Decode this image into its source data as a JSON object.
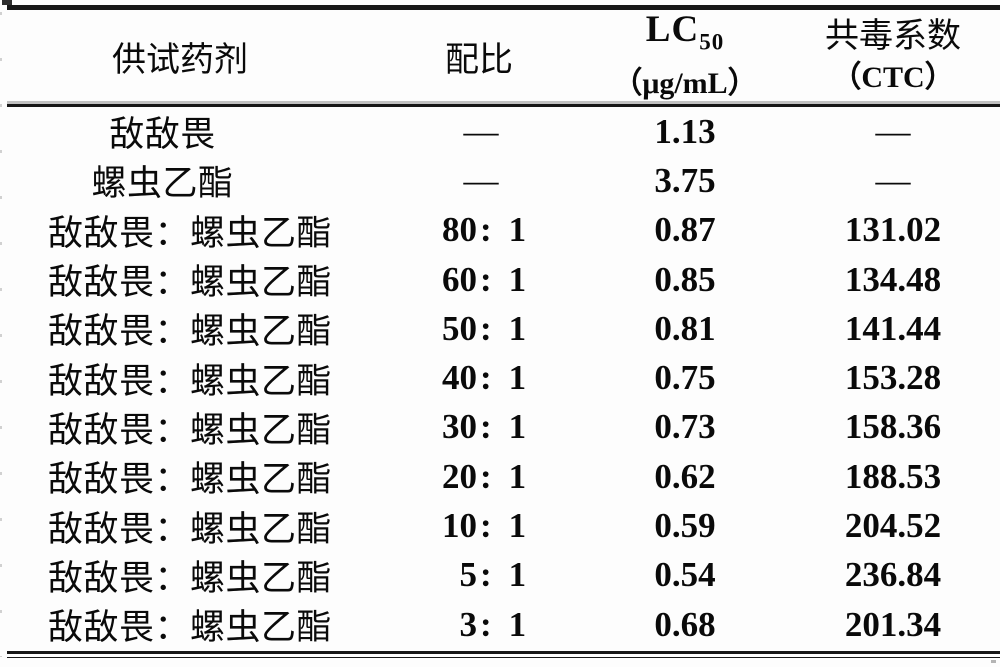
{
  "table": {
    "columns": {
      "agent": "供试药剂",
      "ratio": "配比",
      "lc50_main": "LC",
      "lc50_sub": "50",
      "lc50_unit": "（μg/mL）",
      "ctc_line1": "共毒系数",
      "ctc_line2": "（CTC）"
    },
    "rows": [
      {
        "agent": "敌敌畏",
        "ratio": "—",
        "lc50": "1.13",
        "ctc": "—"
      },
      {
        "agent": "螺虫乙酯",
        "ratio": "—",
        "lc50": "3.75",
        "ctc": "—"
      },
      {
        "agent": "敌敌畏：螺虫乙酯",
        "ratio": "80：1",
        "lc50": "0.87",
        "ctc": "131.02"
      },
      {
        "agent": "敌敌畏：螺虫乙酯",
        "ratio": "60：1",
        "lc50": "0.85",
        "ctc": "134.48"
      },
      {
        "agent": "敌敌畏：螺虫乙酯",
        "ratio": "50：1",
        "lc50": "0.81",
        "ctc": "141.44"
      },
      {
        "agent": "敌敌畏：螺虫乙酯",
        "ratio": "40：1",
        "lc50": "0.75",
        "ctc": "153.28"
      },
      {
        "agent": "敌敌畏：螺虫乙酯",
        "ratio": "30：1",
        "lc50": "0.73",
        "ctc": "158.36"
      },
      {
        "agent": "敌敌畏：螺虫乙酯",
        "ratio": "20：1",
        "lc50": "0.62",
        "ctc": "188.53"
      },
      {
        "agent": "敌敌畏：螺虫乙酯",
        "ratio": "10：1",
        "lc50": "0.59",
        "ctc": "204.52"
      },
      {
        "agent": "敌敌畏：螺虫乙酯",
        "ratio": "5：1",
        "lc50": "0.54",
        "ctc": "236.84"
      },
      {
        "agent": "敌敌畏：螺虫乙酯",
        "ratio": "3：1",
        "lc50": "0.68",
        "ctc": "201.34"
      }
    ]
  },
  "chart_data": {
    "type": "table",
    "title": "",
    "columns": [
      "供试药剂",
      "配比",
      "LC50（μg/mL）",
      "共毒系数（CTC）"
    ],
    "rows": [
      [
        "敌敌畏",
        "—",
        1.13,
        null
      ],
      [
        "螺虫乙酯",
        "—",
        3.75,
        null
      ],
      [
        "敌敌畏：螺虫乙酯",
        "80：1",
        0.87,
        131.02
      ],
      [
        "敌敌畏：螺虫乙酯",
        "60：1",
        0.85,
        134.48
      ],
      [
        "敌敌畏：螺虫乙酯",
        "50：1",
        0.81,
        141.44
      ],
      [
        "敌敌畏：螺虫乙酯",
        "40：1",
        0.75,
        153.28
      ],
      [
        "敌敌畏：螺虫乙酯",
        "30：1",
        0.73,
        158.36
      ],
      [
        "敌敌畏：螺虫乙酯",
        "20：1",
        0.62,
        188.53
      ],
      [
        "敌敌畏：螺虫乙酯",
        "10：1",
        0.59,
        204.52
      ],
      [
        "敌敌畏：螺虫乙酯",
        "5：1",
        0.54,
        236.84
      ],
      [
        "敌敌畏：螺虫乙酯",
        "3：1",
        0.68,
        201.34
      ]
    ]
  }
}
